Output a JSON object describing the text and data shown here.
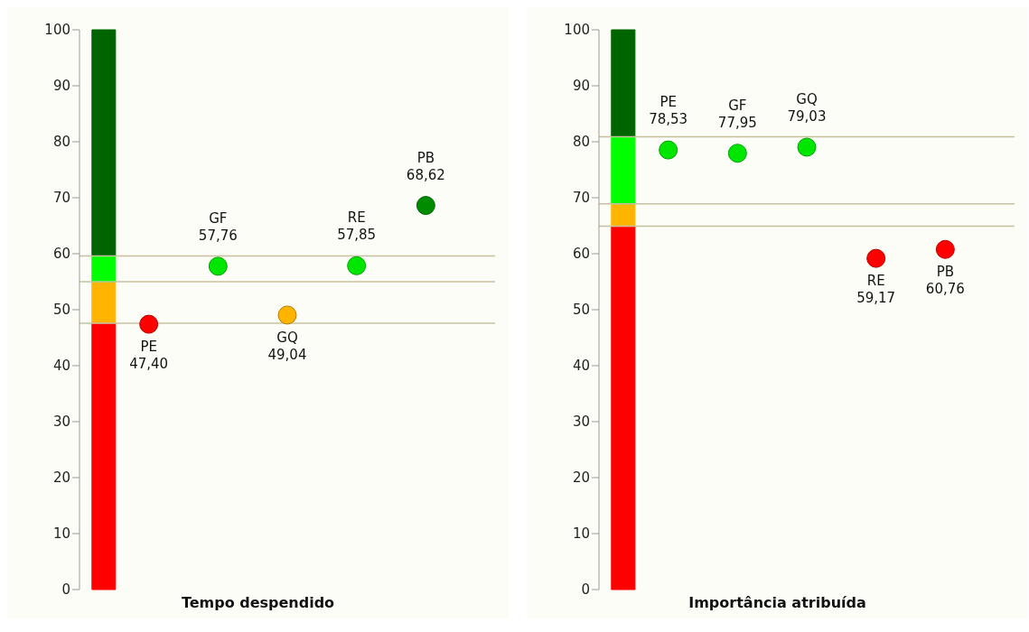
{
  "chart_data": [
    {
      "type": "scatter",
      "xlabel": "Tempo despendido",
      "categories": [
        "PE",
        "GF",
        "GQ",
        "RE",
        "PB"
      ],
      "values": [
        47.4,
        57.76,
        49.04,
        57.85,
        68.62
      ],
      "value_labels": [
        "47,40",
        "57,76",
        "49,04",
        "57,85",
        "68,62"
      ],
      "colors": [
        "#ff0000",
        "#00e600",
        "#ffb400",
        "#00e600",
        "#008c00"
      ],
      "ylim": [
        0,
        100
      ],
      "yticks": [
        0,
        10,
        20,
        30,
        40,
        50,
        60,
        70,
        80,
        90,
        100
      ],
      "tick_labels": "y",
      "grid": false,
      "legend": false,
      "marker": "circle",
      "bands": [
        {
          "axis": "y",
          "from": 0,
          "to": 47.6,
          "color": "#ff0000"
        },
        {
          "axis": "y",
          "from": 47.6,
          "to": 55,
          "color": "#ffb400"
        },
        {
          "axis": "y",
          "from": 55,
          "to": 59.6,
          "color": "#00ff00"
        },
        {
          "axis": "y",
          "from": 59.6,
          "to": 100,
          "color": "#006400"
        }
      ],
      "ref_lines": [
        {
          "axis": "y",
          "value": 47.6,
          "color": "#c8c0a0"
        },
        {
          "axis": "y",
          "value": 55,
          "color": "#c8c0a0"
        },
        {
          "axis": "y",
          "value": 59.6,
          "color": "#c8c0a0"
        }
      ]
    },
    {
      "type": "scatter",
      "xlabel": "Importância atribuída",
      "categories": [
        "PE",
        "GF",
        "GQ",
        "RE",
        "PB"
      ],
      "values": [
        78.53,
        77.95,
        79.03,
        59.17,
        60.76
      ],
      "value_labels": [
        "78,53",
        "77,95",
        "79,03",
        "59,17",
        "60,76"
      ],
      "colors": [
        "#00e600",
        "#00e600",
        "#00e600",
        "#ff0000",
        "#ff0000"
      ],
      "ylim": [
        0,
        100
      ],
      "yticks": [
        0,
        10,
        20,
        30,
        40,
        50,
        60,
        70,
        80,
        90,
        100
      ],
      "tick_labels": "y",
      "grid": false,
      "legend": false,
      "marker": "circle",
      "bands": [
        {
          "axis": "y",
          "from": 0,
          "to": 64.9,
          "color": "#ff0000"
        },
        {
          "axis": "y",
          "from": 64.9,
          "to": 68.9,
          "color": "#ffb400"
        },
        {
          "axis": "y",
          "from": 68.9,
          "to": 80.9,
          "color": "#00ff00"
        },
        {
          "axis": "y",
          "from": 80.9,
          "to": 100,
          "color": "#006400"
        }
      ],
      "ref_lines": [
        {
          "axis": "y",
          "value": 64.9,
          "color": "#c8c0a0"
        },
        {
          "axis": "y",
          "value": 68.9,
          "color": "#c8c0a0"
        },
        {
          "axis": "y",
          "value": 80.9,
          "color": "#c8c0a0"
        }
      ]
    }
  ]
}
